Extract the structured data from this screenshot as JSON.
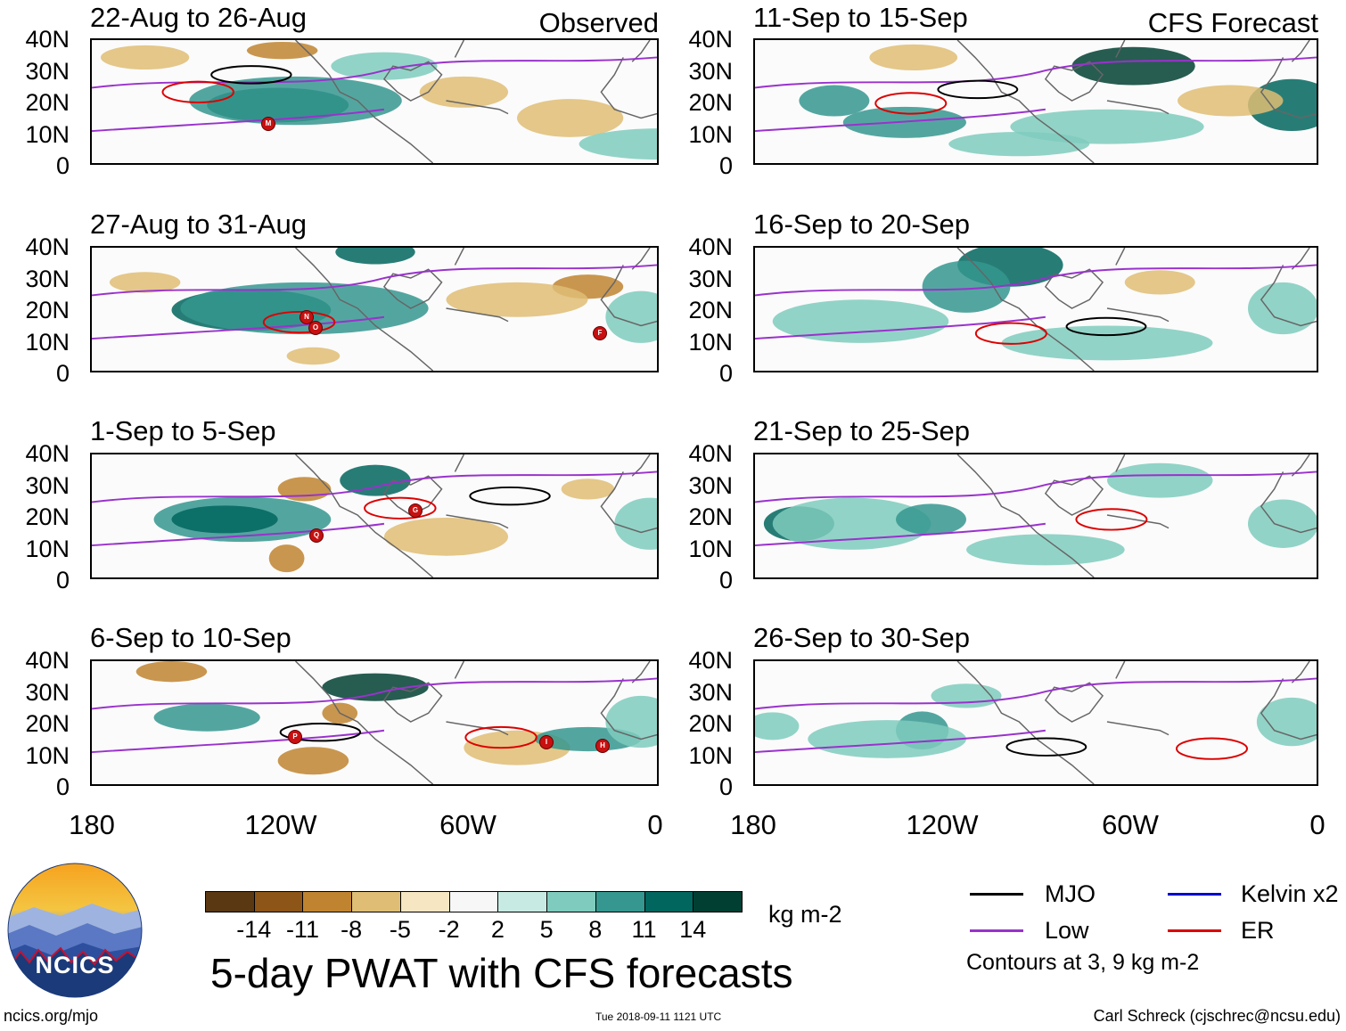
{
  "panels": [
    {
      "title": "22-Aug to 26-Aug",
      "tag": "Observed"
    },
    {
      "title": "11-Sep to 15-Sep",
      "tag": "CFS Forecast"
    },
    {
      "title": "27-Aug to 31-Aug",
      "tag": ""
    },
    {
      "title": "16-Sep to 20-Sep",
      "tag": ""
    },
    {
      "title": "1-Sep to 5-Sep",
      "tag": ""
    },
    {
      "title": "21-Sep to 25-Sep",
      "tag": ""
    },
    {
      "title": "6-Sep to 10-Sep",
      "tag": ""
    },
    {
      "title": "26-Sep to 30-Sep",
      "tag": ""
    }
  ],
  "axes": {
    "lat_labels": [
      "40N",
      "30N",
      "20N",
      "10N",
      "0"
    ],
    "lon_labels": [
      "180",
      "120W",
      "60W",
      "0"
    ]
  },
  "storm_markers": [
    {
      "panel": 0,
      "letter": "M"
    },
    {
      "panel": 2,
      "letter": "N"
    },
    {
      "panel": 2,
      "letter": "O"
    },
    {
      "panel": 2,
      "letter": "F"
    },
    {
      "panel": 4,
      "letter": "Q"
    },
    {
      "panel": 4,
      "letter": "G"
    },
    {
      "panel": 6,
      "letter": "P"
    },
    {
      "panel": 6,
      "letter": "I"
    },
    {
      "panel": 6,
      "letter": "H"
    }
  ],
  "colorbar": {
    "labels": [
      "-14",
      "-11",
      "-8",
      "-5",
      "-2",
      "2",
      "5",
      "8",
      "11",
      "14"
    ],
    "colors": [
      "#5a3812",
      "#8d5518",
      "#c08430",
      "#dfbd74",
      "#f6e6c2",
      "#f7f7f7",
      "#c7eae3",
      "#7fcbbd",
      "#35978f",
      "#01665e",
      "#013f33"
    ],
    "unit": "kg m-2"
  },
  "legend": {
    "items": [
      {
        "label": "MJO",
        "color": "#000000"
      },
      {
        "label": "Kelvin x2",
        "color": "#0000cc"
      },
      {
        "label": "Low",
        "color": "#9932cc"
      },
      {
        "label": "ER",
        "color": "#dd0000"
      }
    ],
    "note": "Contours at 3, 9 kg m-2"
  },
  "main_title": "5-day PWAT with CFS forecasts",
  "logo_text": "NCICS",
  "footer": {
    "url": "ncics.org/mjo",
    "timestamp": "Tue 2018-09-11 1121 UTC",
    "author": "Carl Schreck (cjschrec@ncsu.edu)"
  }
}
